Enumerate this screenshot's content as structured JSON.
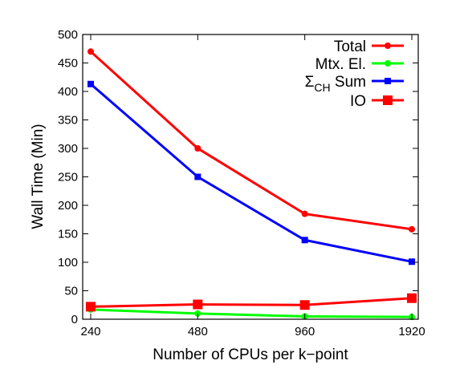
{
  "chart_data": {
    "type": "line",
    "title": "",
    "xlabel": "Number of CPUs per k−point",
    "ylabel": "Wall Time (Min)",
    "categories": [
      "240",
      "480",
      "960",
      "1920"
    ],
    "ylim": [
      0,
      500
    ],
    "yticks": [
      "0",
      "50",
      "100",
      "150",
      "200",
      "250",
      "300",
      "350",
      "400",
      "450",
      "500"
    ],
    "grid": false,
    "legend_position": "top-right",
    "series": [
      {
        "name": "Total",
        "color": "#ff0000",
        "marker": "circle",
        "values": [
          470,
          300,
          185,
          158
        ]
      },
      {
        "name": "Mtx. El.",
        "color": "#00ff00",
        "marker": "circle",
        "values": [
          17,
          10,
          5,
          4
        ]
      },
      {
        "name": "Σ",
        "name_sub": "CH",
        "name_suffix": " Sum",
        "color": "#0000ff",
        "marker": "square",
        "values": [
          413,
          250,
          139,
          101
        ]
      },
      {
        "name": "IO",
        "color": "#ff0000",
        "marker": "square-large",
        "values": [
          22,
          26,
          25,
          37
        ]
      }
    ]
  }
}
